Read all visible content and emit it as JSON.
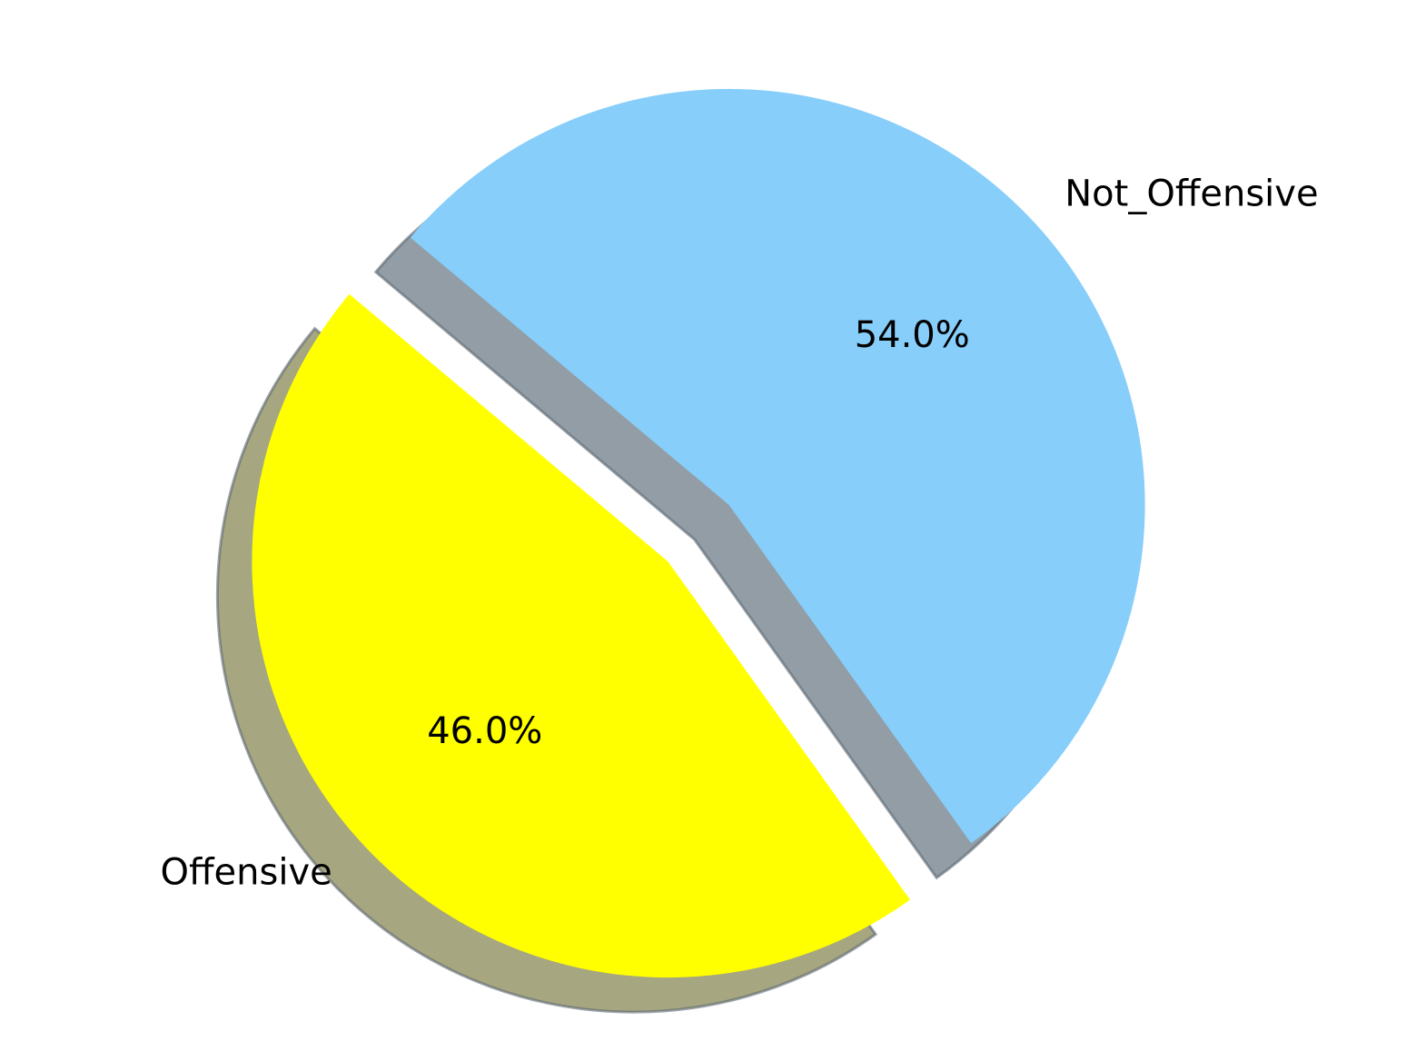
{
  "chart_data": {
    "type": "pie",
    "title": "",
    "slices": [
      {
        "label": "Offensive",
        "value": 46.0,
        "pct_label": "46.0%",
        "color": "#ffff00",
        "shadow_color": "#a6a680",
        "exploded": true
      },
      {
        "label": "Not_Offensive",
        "value": 54.0,
        "pct_label": "54.0%",
        "color": "#87cefa",
        "shadow_color": "#929da6",
        "exploded": true
      }
    ],
    "start_angle_deg": 140,
    "shadow": true,
    "legend": "none"
  }
}
